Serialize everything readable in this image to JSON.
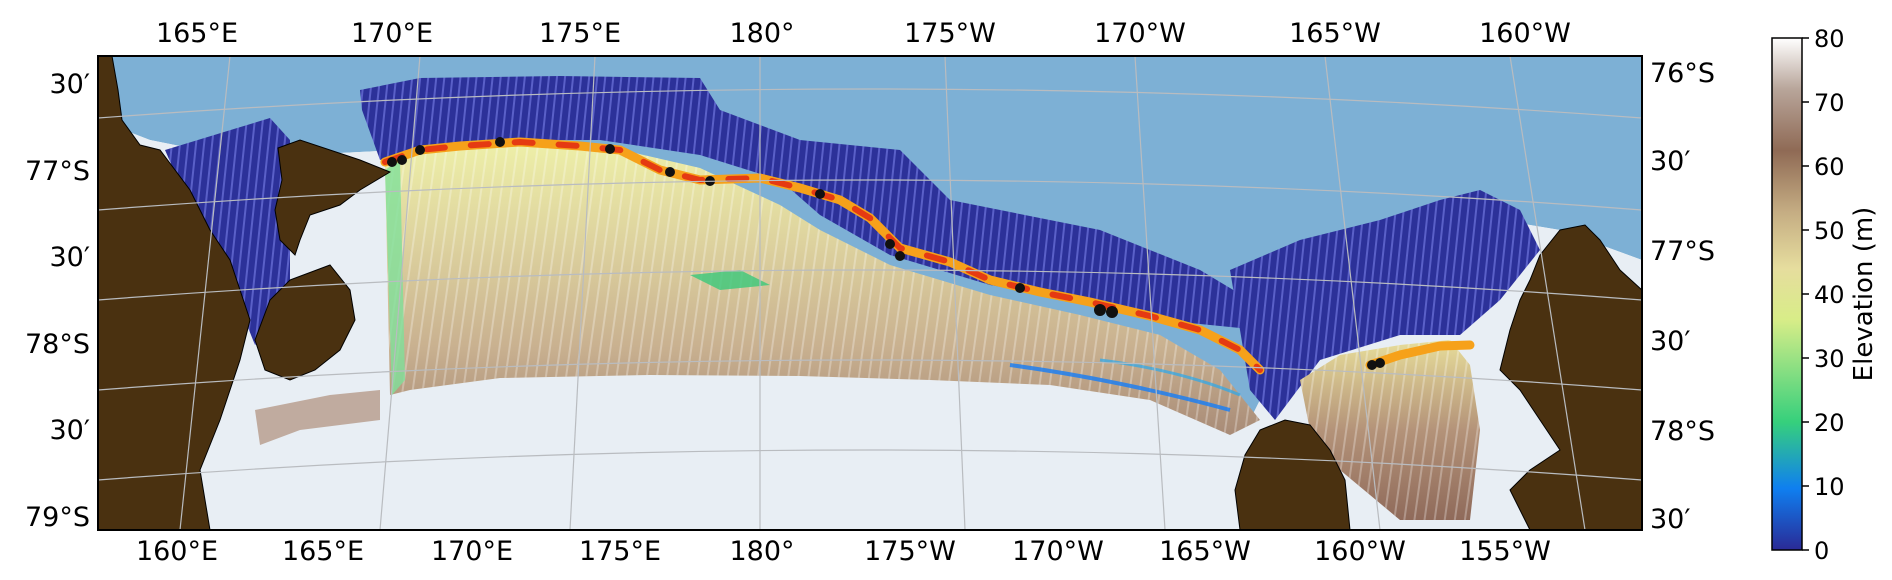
{
  "map": {
    "lon_labels_top": [
      "165°E",
      "170°E",
      "175°E",
      "180°",
      "175°W",
      "170°W",
      "165°W",
      "160°W"
    ],
    "lon_labels_bottom": [
      "160°E",
      "165°E",
      "170°E",
      "175°E",
      "180°",
      "175°W",
      "170°W",
      "165°W",
      "160°W",
      "155°W"
    ],
    "lat_labels_left": [
      "30′",
      "77°S",
      "30′",
      "78°S",
      "30′",
      "79°S"
    ],
    "lat_labels_right": [
      "76°S",
      "30′",
      "77°S",
      "30′",
      "78°S",
      "30′"
    ]
  },
  "colorbar": {
    "label": "Elevation (m)",
    "ticks": [
      "80",
      "70",
      "60",
      "50",
      "40",
      "30",
      "20",
      "10",
      "0"
    ],
    "range": [
      0,
      80
    ],
    "colormap": [
      "#2a2a96",
      "#0f7ff0",
      "#36d07c",
      "#d8ed88",
      "#e6dd9e",
      "#c5ad83",
      "#8f6a55",
      "#b8a59a",
      "#ffffff"
    ]
  },
  "colors": {
    "ocean": "#7db0d5",
    "land": "#4a3110",
    "ice_shelf": "#e8eef4",
    "low_elev": "#2c3199",
    "front_red": "#e53a12",
    "front_orange": "#f6a11a"
  }
}
